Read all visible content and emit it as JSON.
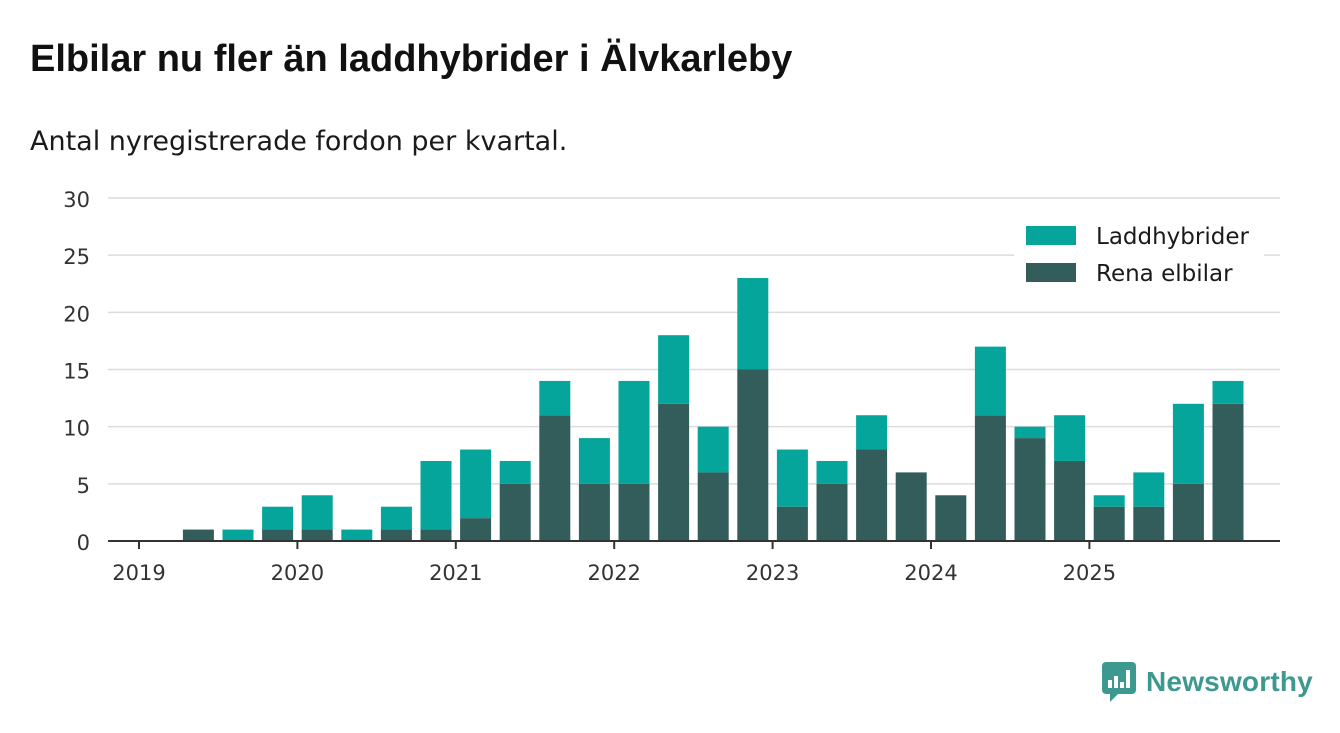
{
  "title": "Elbilar nu fler än laddhybrider i Älvkarleby",
  "subtitle": "Antal nyregistrerade fordon per kvartal.",
  "brand": {
    "name": "Newsworthy",
    "icon": "newsworthy-logo-icon"
  },
  "colors": {
    "laddhybrider": "#05a59b",
    "rena_elbilar": "#335d5b",
    "grid": "#dcdcdc",
    "axis": "#333333",
    "brand": "#3d9990"
  },
  "chart_data": {
    "type": "bar",
    "stacked": true,
    "categories": [
      "2019 Q1",
      "2019 Q2",
      "2019 Q3",
      "2019 Q4",
      "2020 Q1",
      "2020 Q2",
      "2020 Q3",
      "2020 Q4",
      "2021 Q1",
      "2021 Q2",
      "2021 Q3",
      "2021 Q4",
      "2022 Q1",
      "2022 Q2",
      "2022 Q3",
      "2022 Q4",
      "2023 Q1",
      "2023 Q2",
      "2023 Q3",
      "2023 Q4",
      "2024 Q1",
      "2024 Q2",
      "2024 Q3",
      "2024 Q4",
      "2025 Q1",
      "2025 Q2",
      "2025 Q3",
      "2025 Q4"
    ],
    "series": [
      {
        "name": "Rena elbilar",
        "values": [
          0,
          1,
          0,
          1,
          1,
          0,
          1,
          1,
          2,
          5,
          11,
          5,
          5,
          12,
          6,
          15,
          3,
          5,
          8,
          6,
          4,
          11,
          9,
          7,
          3,
          3,
          5,
          12
        ]
      },
      {
        "name": "Laddhybrider",
        "values": [
          0,
          0,
          1,
          2,
          3,
          1,
          2,
          6,
          6,
          2,
          3,
          4,
          9,
          6,
          4,
          8,
          5,
          2,
          3,
          0,
          0,
          6,
          1,
          4,
          1,
          3,
          7,
          2
        ]
      }
    ],
    "legend": [
      "Laddhybrider",
      "Rena elbilar"
    ],
    "legend_position": "top-right",
    "x_tick_labels": [
      "2019",
      "2020",
      "2021",
      "2022",
      "2023",
      "2024",
      "2025"
    ],
    "y_ticks": [
      "0",
      "5",
      "10",
      "15",
      "20",
      "25",
      "30"
    ],
    "ylim": [
      0,
      30
    ],
    "grid": true,
    "xlabel": "",
    "ylabel": ""
  }
}
